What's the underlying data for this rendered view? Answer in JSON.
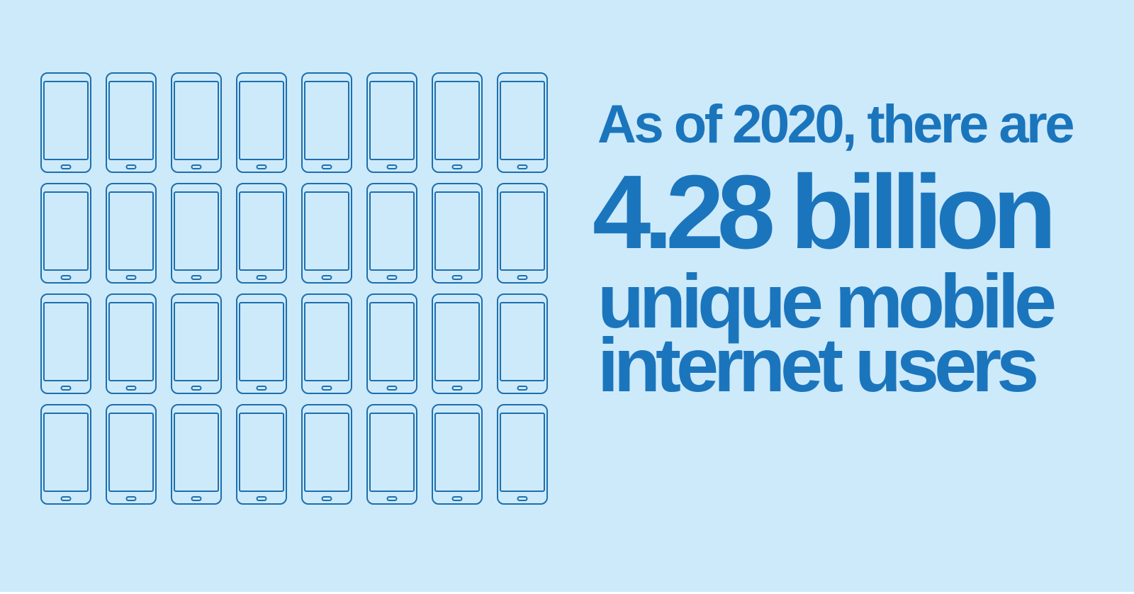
{
  "canvas": {
    "background_color": "#cdeafb",
    "bottom_strip_color": "#ffffff"
  },
  "infographic": {
    "text_color": "#1b75bc",
    "intro_line": "As of 2020, there are",
    "value_line": "4.28 billion",
    "caption_line1": "unique mobile",
    "caption_line2": "internet users"
  },
  "phone_grid": {
    "icon": "smartphone-icon",
    "stroke_color": "#1e6fad",
    "rows": 4,
    "columns": 8,
    "total_icons": 32
  },
  "chart_data": {
    "type": "pictogram",
    "title": "As of 2020, there are 4.28 billion unique mobile internet users",
    "value": 4.28,
    "unit": "billion",
    "metric": "unique mobile internet users",
    "year": 2020,
    "icon": "smartphone",
    "icon_rows": 4,
    "icon_columns": 8,
    "icon_count": 32,
    "legend_position": "none",
    "grid": false
  }
}
